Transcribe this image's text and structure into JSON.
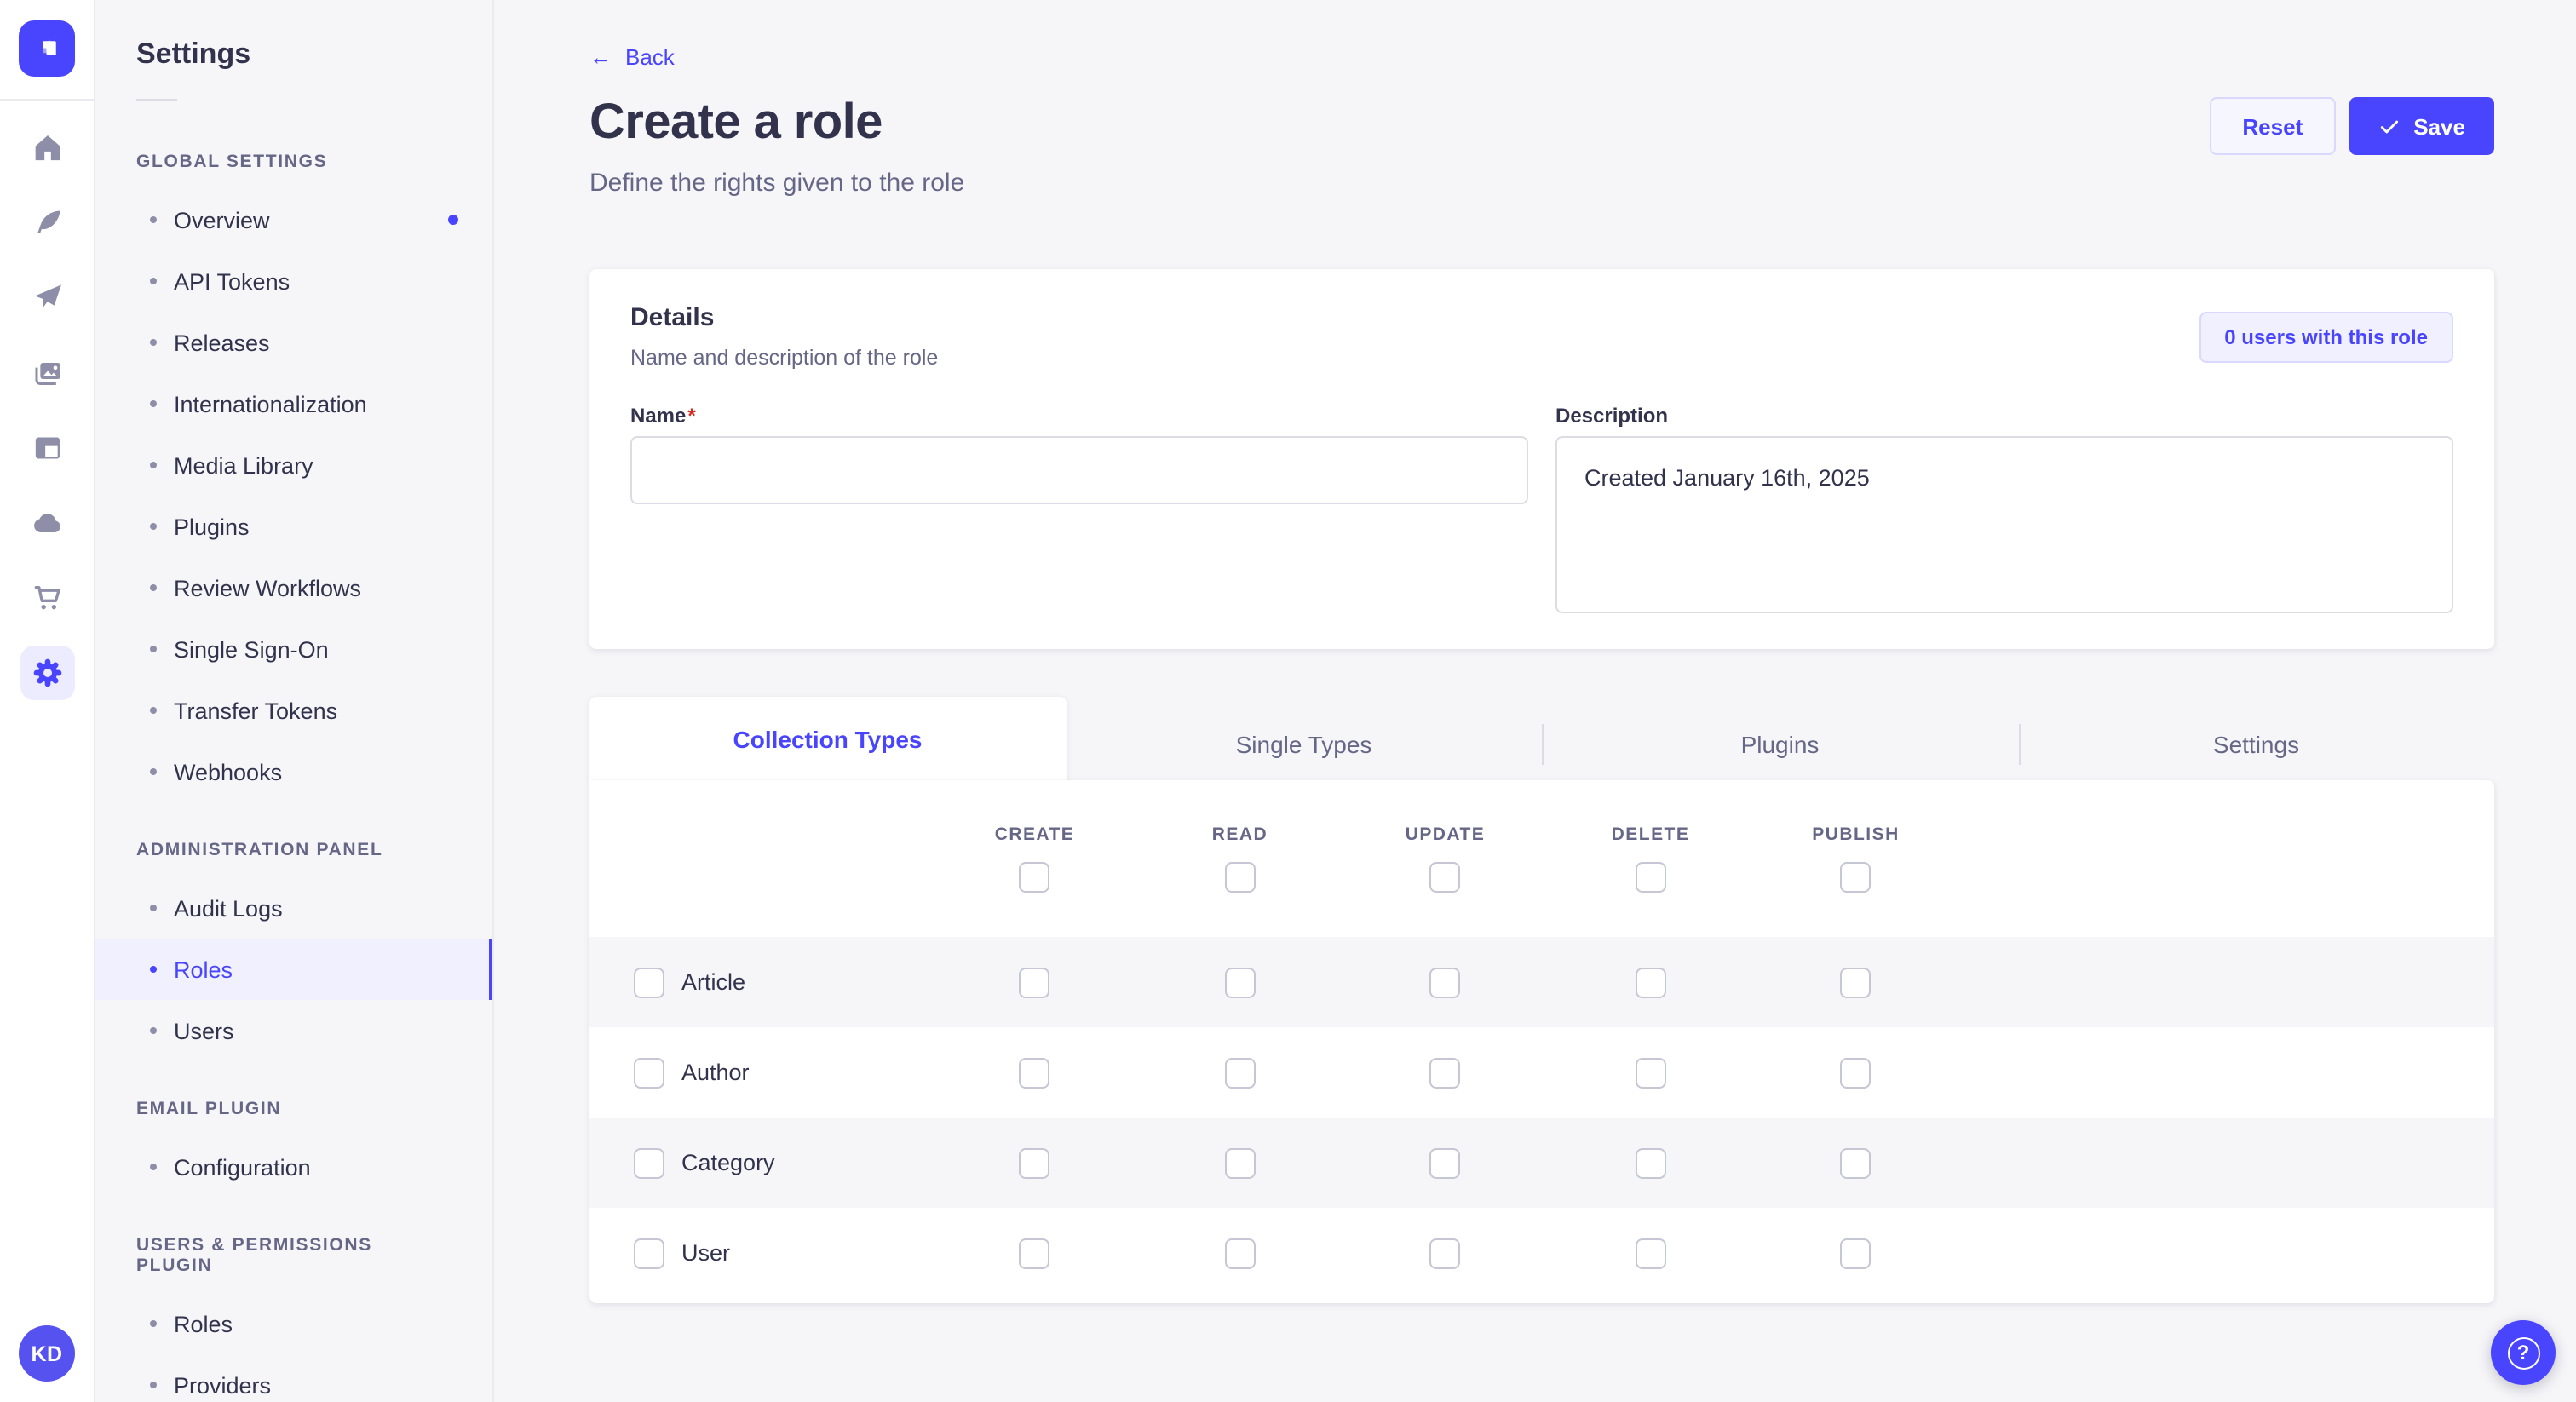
{
  "rail": {
    "logo_icon": "strapi-logo",
    "items": [
      {
        "icon": "home-icon"
      },
      {
        "icon": "content-manager-icon"
      },
      {
        "icon": "releases-icon"
      },
      {
        "icon": "media-library-icon"
      },
      {
        "icon": "content-type-builder-icon"
      },
      {
        "icon": "cloud-icon"
      },
      {
        "icon": "marketplace-icon"
      },
      {
        "icon": "settings-icon",
        "active": true
      }
    ],
    "avatar_initials": "KD"
  },
  "sidebar": {
    "title": "Settings",
    "sections": [
      {
        "label": "GLOBAL SETTINGS",
        "items": [
          {
            "label": "Overview",
            "notification_dot": true
          },
          {
            "label": "API Tokens"
          },
          {
            "label": "Releases"
          },
          {
            "label": "Internationalization"
          },
          {
            "label": "Media Library"
          },
          {
            "label": "Plugins"
          },
          {
            "label": "Review Workflows"
          },
          {
            "label": "Single Sign-On"
          },
          {
            "label": "Transfer Tokens"
          },
          {
            "label": "Webhooks"
          }
        ]
      },
      {
        "label": "ADMINISTRATION PANEL",
        "items": [
          {
            "label": "Audit Logs"
          },
          {
            "label": "Roles",
            "active": true
          },
          {
            "label": "Users"
          }
        ]
      },
      {
        "label": "EMAIL PLUGIN",
        "items": [
          {
            "label": "Configuration"
          }
        ]
      },
      {
        "label": "USERS & PERMISSIONS PLUGIN",
        "items": [
          {
            "label": "Roles"
          },
          {
            "label": "Providers"
          }
        ]
      }
    ]
  },
  "header": {
    "back_arrow": "←",
    "back_label": "Back",
    "title": "Create a role",
    "subtitle": "Define the rights given to the role",
    "reset_label": "Reset",
    "save_label": "Save"
  },
  "details": {
    "title": "Details",
    "subtitle": "Name and description of the role",
    "users_button_label": "0 users with this role",
    "name_label": "Name",
    "required_marker": "*",
    "name_value": "",
    "description_label": "Description",
    "description_value": "Created January 16th, 2025"
  },
  "permissions": {
    "tabs": [
      {
        "label": "Collection Types",
        "active": true
      },
      {
        "label": "Single Types"
      },
      {
        "label": "Plugins"
      },
      {
        "label": "Settings"
      }
    ],
    "columns": [
      "CREATE",
      "READ",
      "UPDATE",
      "DELETE",
      "PUBLISH"
    ],
    "select_all": [
      false,
      false,
      false,
      false,
      false
    ],
    "rows": [
      {
        "label": "Article",
        "selected": false,
        "checks": [
          false,
          false,
          false,
          false,
          false
        ]
      },
      {
        "label": "Author",
        "selected": false,
        "checks": [
          false,
          false,
          false,
          false,
          false
        ]
      },
      {
        "label": "Category",
        "selected": false,
        "checks": [
          false,
          false,
          false,
          false,
          false
        ]
      },
      {
        "label": "User",
        "selected": false,
        "checks": [
          false,
          false,
          false,
          false,
          false
        ]
      }
    ]
  },
  "help": {
    "icon": "question-mark-icon",
    "glyph": "?"
  },
  "colors": {
    "accent": "#4945ff",
    "accent_light": "#f0f0ff",
    "accent_border": "#d9d8ff",
    "accent_soft": "#ececfe",
    "text": "#32324d",
    "muted": "#666687",
    "icon": "#8e8ea9",
    "bg": "#f6f6f9",
    "border": "#eaeaef",
    "border_strong": "#dcdce4",
    "required": "#d02b20",
    "avatar": "#5652f0"
  }
}
